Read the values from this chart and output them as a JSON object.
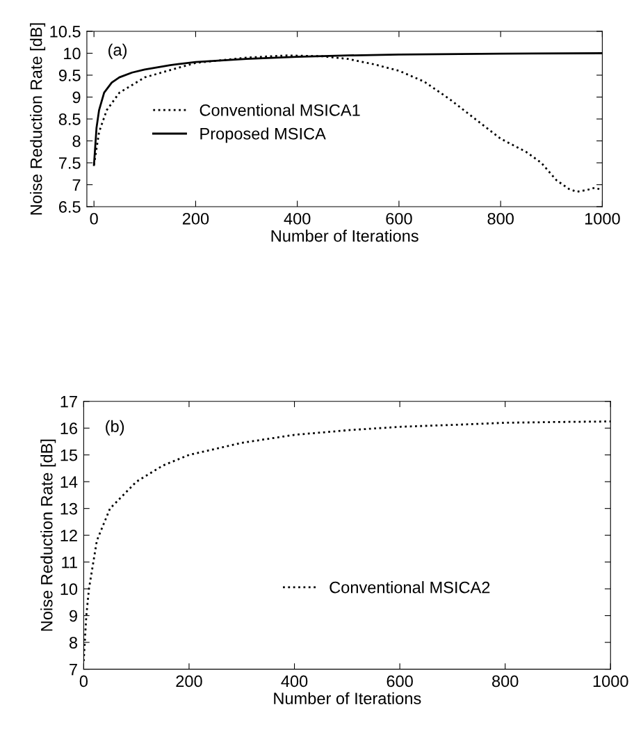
{
  "chart_data": [
    {
      "type": "line",
      "xlabel": "Number of Iterations",
      "ylabel": "Noise Reduction Rate [dB]",
      "annotations": [
        "(a)"
      ],
      "xlim": [
        -14,
        1000
      ],
      "xticks": [
        0,
        200,
        400,
        600,
        800,
        1000
      ],
      "ylim": [
        6.5,
        10.5
      ],
      "yticks": [
        6.5,
        7,
        7.5,
        8,
        8.5,
        9,
        9.5,
        10,
        10.5
      ],
      "grid": false,
      "legend": "lower left",
      "series": [
        {
          "name": "Conventional MSICA1",
          "color": "#000000",
          "line_style": "dotted",
          "x": [
            0,
            10,
            25,
            50,
            100,
            200,
            300,
            380,
            450,
            500,
            550,
            600,
            650,
            700,
            750,
            800,
            850,
            880,
            910,
            935,
            950,
            970,
            985,
            1000
          ],
          "values": [
            7.45,
            8.2,
            8.7,
            9.1,
            9.45,
            9.78,
            9.9,
            9.95,
            9.93,
            9.87,
            9.75,
            9.6,
            9.35,
            8.95,
            8.5,
            8.05,
            7.75,
            7.5,
            7.1,
            6.9,
            6.84,
            6.88,
            6.93,
            6.88
          ]
        },
        {
          "name": "Proposed MSICA",
          "color": "#000000",
          "line_style": "solid",
          "x": [
            0,
            5,
            10,
            20,
            35,
            50,
            75,
            100,
            150,
            200,
            300,
            400,
            500,
            600,
            800,
            1000
          ],
          "values": [
            7.45,
            8.3,
            8.7,
            9.1,
            9.33,
            9.45,
            9.56,
            9.63,
            9.73,
            9.8,
            9.87,
            9.92,
            9.95,
            9.97,
            9.99,
            10.0
          ]
        }
      ]
    },
    {
      "type": "line",
      "xlabel": "Number of Iterations",
      "ylabel": "Noise Reduction Rate [dB]",
      "annotations": [
        "(b)"
      ],
      "xlim": [
        0,
        1000
      ],
      "xticks": [
        0,
        200,
        400,
        600,
        800,
        1000
      ],
      "ylim": [
        7,
        17
      ],
      "yticks": [
        7,
        8,
        9,
        10,
        11,
        12,
        13,
        14,
        15,
        16,
        17
      ],
      "grid": false,
      "legend": "center right",
      "series": [
        {
          "name": "Conventional MSICA2",
          "color": "#000000",
          "line_style": "dotted",
          "x": [
            0,
            5,
            10,
            25,
            50,
            100,
            150,
            200,
            300,
            400,
            500,
            600,
            700,
            800,
            900,
            1000
          ],
          "values": [
            7.3,
            9.0,
            10.0,
            11.8,
            13.0,
            14.0,
            14.6,
            15.0,
            15.45,
            15.75,
            15.92,
            16.05,
            16.12,
            16.2,
            16.23,
            16.25
          ]
        }
      ]
    }
  ]
}
